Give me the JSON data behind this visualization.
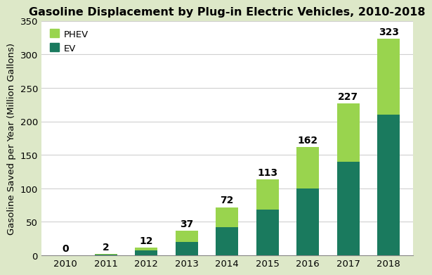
{
  "title": "Gasoline Displacement by Plug-in Electric Vehicles, 2010-2018",
  "ylabel": "Gasoline Saved per Year (Million Gallons)",
  "years": [
    "2010",
    "2011",
    "2012",
    "2013",
    "2014",
    "2015",
    "2016",
    "2017",
    "2018"
  ],
  "ev_values": [
    0,
    1,
    8,
    20,
    42,
    68,
    100,
    140,
    210
  ],
  "phev_values": [
    0,
    1,
    4,
    17,
    30,
    45,
    62,
    87,
    113
  ],
  "totals": [
    0,
    2,
    12,
    37,
    72,
    113,
    162,
    227,
    323
  ],
  "ev_color": "#1a7a5e",
  "phev_color": "#99d44e",
  "figure_background_color": "#dde8c8",
  "plot_background_color": "#ffffff",
  "grid_color": "#d0d0d0",
  "legend_phev": "PHEV",
  "legend_ev": "EV",
  "ylim": [
    0,
    350
  ],
  "yticks": [
    0,
    50,
    100,
    150,
    200,
    250,
    300,
    350
  ],
  "title_fontsize": 11.5,
  "label_fontsize": 9.5,
  "tick_fontsize": 9.5,
  "annotation_fontsize": 10,
  "bar_width": 0.55
}
